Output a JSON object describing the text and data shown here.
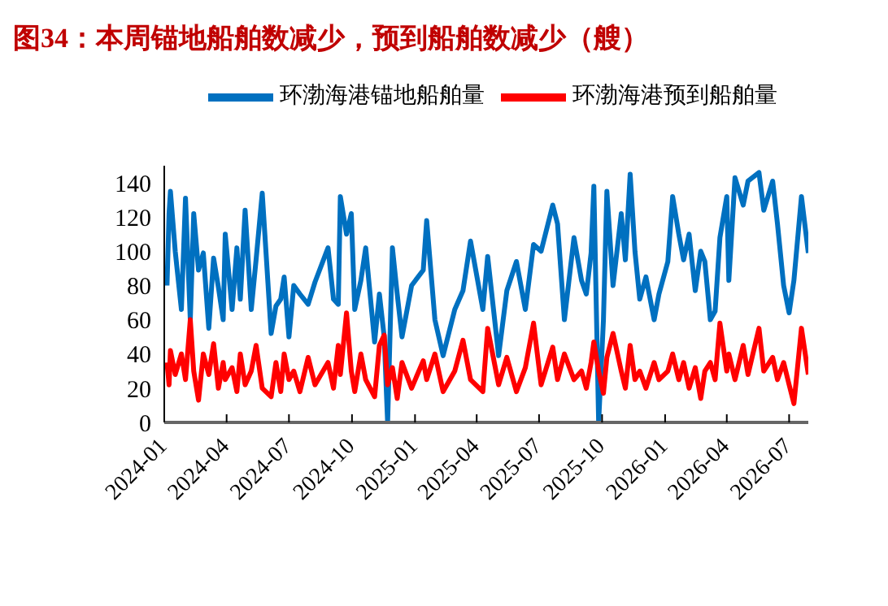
{
  "chart_data": {
    "type": "line",
    "title": "图34：本周锚地船舶数减少，预到船舶数减少（艘）",
    "x": [
      "2024-01-05",
      "2024-01-08",
      "2024-01-10",
      "2024-01-17",
      "2024-01-26",
      "2024-02-01",
      "2024-02-08",
      "2024-02-13",
      "2024-02-20",
      "2024-02-27",
      "2024-03-06",
      "2024-03-13",
      "2024-03-20",
      "2024-03-27",
      "2024-03-30",
      "2024-04-09",
      "2024-04-16",
      "2024-04-21",
      "2024-04-28",
      "2024-05-07",
      "2024-05-14",
      "2024-05-23",
      "2024-06-05",
      "2024-06-12",
      "2024-06-19",
      "2024-06-24",
      "2024-07-01",
      "2024-07-08",
      "2024-07-17",
      "2024-07-29",
      "2024-08-08",
      "2024-08-27",
      "2024-09-04",
      "2024-09-11",
      "2024-09-14",
      "2024-09-23",
      "2024-09-30",
      "2024-10-05",
      "2024-10-14",
      "2024-10-21",
      "2024-11-03",
      "2024-11-10",
      "2024-11-17",
      "2024-11-22",
      "2024-11-29",
      "2024-12-06",
      "2024-12-13",
      "2024-12-27",
      "2025-01-13",
      "2025-01-18",
      "2025-01-30",
      "2025-02-11",
      "2025-02-28",
      "2025-03-12",
      "2025-03-23",
      "2025-04-10",
      "2025-04-17",
      "2025-05-03",
      "2025-05-15",
      "2025-05-29",
      "2025-06-11",
      "2025-06-23",
      "2025-07-04",
      "2025-07-21",
      "2025-07-28",
      "2025-08-07",
      "2025-08-21",
      "2025-09-01",
      "2025-09-08",
      "2025-09-15",
      "2025-09-19",
      "2025-09-26",
      "2025-10-03",
      "2025-10-08",
      "2025-10-17",
      "2025-10-29",
      "2025-11-04",
      "2025-11-11",
      "2025-11-18",
      "2025-11-25",
      "2025-12-04",
      "2025-12-16",
      "2025-12-23",
      "2026-01-05",
      "2026-01-12",
      "2026-01-21",
      "2026-01-28",
      "2026-02-05",
      "2026-02-14",
      "2026-02-22",
      "2026-02-28",
      "2026-03-08",
      "2026-03-15",
      "2026-03-22",
      "2026-04-01",
      "2026-04-04",
      "2026-04-13",
      "2026-04-25",
      "2026-05-02",
      "2026-05-18",
      "2026-05-25",
      "2026-06-07",
      "2026-06-14",
      "2026-06-23",
      "2026-07-01",
      "2026-07-08",
      "2026-07-19",
      "2026-07-29"
    ],
    "series": [
      {
        "name": "环渤海港锚地船舶量",
        "color": "#0070c0",
        "values": [
          80,
          122,
          135,
          100,
          66,
          131,
          60,
          122,
          89,
          99,
          55,
          96,
          79,
          60,
          110,
          66,
          102,
          72,
          124,
          66,
          95,
          134,
          52,
          68,
          72,
          85,
          50,
          80,
          75,
          69,
          82,
          102,
          72,
          69,
          132,
          110,
          122,
          66,
          83,
          102,
          47,
          75,
          50,
          0,
          102,
          75,
          50,
          80,
          89,
          118,
          60,
          39,
          66,
          77,
          106,
          66,
          97,
          39,
          77,
          94,
          66,
          104,
          100,
          127,
          116,
          60,
          108,
          83,
          75,
          99,
          138,
          0,
          60,
          135,
          80,
          122,
          95,
          145,
          100,
          72,
          85,
          60,
          75,
          94,
          132,
          110,
          95,
          110,
          77,
          100,
          94,
          60,
          65,
          108,
          132,
          83,
          143,
          127,
          141,
          146,
          124,
          141,
          116,
          80,
          64,
          83,
          132,
          99
        ]
      },
      {
        "name": "环渤海港预到船舶量",
        "color": "#ff0000",
        "values": [
          35,
          22,
          42,
          28,
          40,
          25,
          60,
          30,
          13,
          40,
          28,
          46,
          20,
          35,
          25,
          32,
          18,
          40,
          22,
          30,
          45,
          20,
          15,
          35,
          18,
          40,
          25,
          30,
          18,
          38,
          22,
          35,
          20,
          45,
          28,
          64,
          30,
          18,
          40,
          25,
          15,
          45,
          51,
          22,
          32,
          14,
          35,
          20,
          36,
          25,
          40,
          18,
          30,
          48,
          25,
          18,
          55,
          22,
          38,
          18,
          32,
          58,
          22,
          44,
          25,
          40,
          25,
          30,
          20,
          35,
          47,
          30,
          17,
          38,
          52,
          30,
          20,
          45,
          25,
          30,
          20,
          35,
          25,
          30,
          40,
          25,
          35,
          20,
          32,
          14,
          30,
          35,
          25,
          58,
          30,
          40,
          25,
          45,
          28,
          55,
          30,
          38,
          25,
          35,
          22,
          11,
          55,
          28
        ]
      }
    ],
    "xlim": [
      "2024-01-01",
      "2026-07-29"
    ],
    "xticks": [
      "2024-01",
      "2024-04",
      "2024-07",
      "2024-10",
      "2025-01",
      "2025-04",
      "2025-07",
      "2025-10",
      "2026-01",
      "2026-04",
      "2026-07"
    ],
    "ylim": [
      0,
      150
    ],
    "yticks": [
      0,
      20,
      40,
      60,
      80,
      100,
      120,
      140
    ],
    "legend": "top",
    "grid": false,
    "marker": "none",
    "line_style": "solid"
  }
}
